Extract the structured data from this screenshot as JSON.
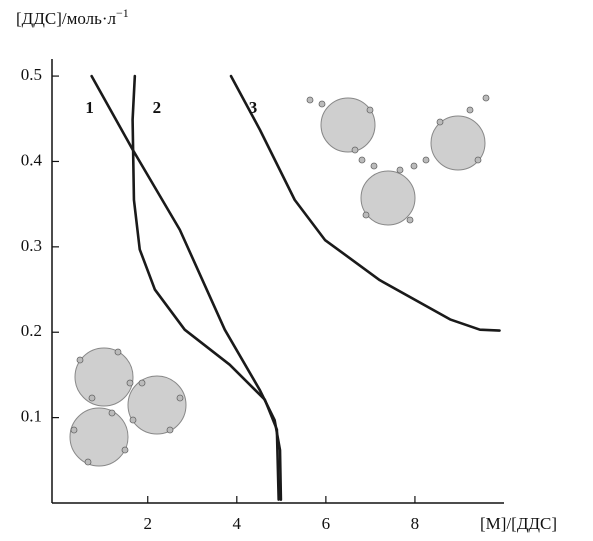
{
  "chart_data": {
    "type": "line",
    "y_label": "[ДДС]/моль·л",
    "y_label_exp": "−1",
    "x_label": "[M]/[ДДС]",
    "xlim": [
      -0.15,
      10
    ],
    "ylim": [
      0,
      0.52
    ],
    "xticks": [
      2,
      4,
      6,
      8
    ],
    "yticks": [
      0.1,
      0.2,
      0.3,
      0.4,
      0.5
    ],
    "series": [
      {
        "name": "1",
        "color": "#1a1a1a",
        "x": [
          0.74,
          1.66,
          2.72,
          3.73,
          4.52,
          4.85,
          4.97,
          4.99
        ],
        "values": [
          0.5,
          0.414,
          0.32,
          0.203,
          0.132,
          0.097,
          0.062,
          0.004
        ]
      },
      {
        "name": "2",
        "color": "#1a1a1a",
        "x": [
          1.71,
          1.66,
          1.69,
          1.82,
          2.16,
          2.83,
          3.84,
          4.63,
          4.9,
          4.94
        ],
        "values": [
          0.5,
          0.449,
          0.355,
          0.297,
          0.25,
          0.203,
          0.162,
          0.121,
          0.086,
          0.004
        ]
      },
      {
        "name": "3",
        "color": "#1a1a1a",
        "x": [
          3.87,
          4.52,
          5.3,
          5.98,
          7.21,
          8.79,
          9.46,
          9.9
        ],
        "values": [
          0.5,
          0.437,
          0.355,
          0.308,
          0.261,
          0.215,
          0.203,
          0.202
        ]
      }
    ]
  }
}
